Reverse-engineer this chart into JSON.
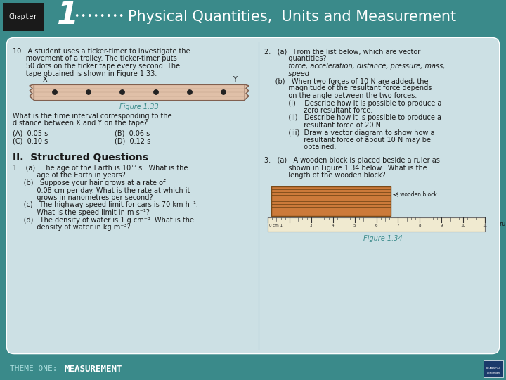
{
  "header_bg": "#3a8a8a",
  "chapter_box_bg": "#1a1a1a",
  "chapter_box_text": "Chapter",
  "header_title": "Physical Quantities,  Units and Measurement",
  "footer_theme": "THEME ONE:",
  "footer_measurement": "MEASUREMENT",
  "teal_color": "#3a8a8a",
  "fig133_caption": "Figure 1.33",
  "fig134_caption": "Figure 1.34",
  "q10_A": "(A)  0.05 s",
  "q10_B": "(B)  0.06 s",
  "q10_C": "(C)  0.10 s",
  "q10_D": "(D)  0.12 s"
}
